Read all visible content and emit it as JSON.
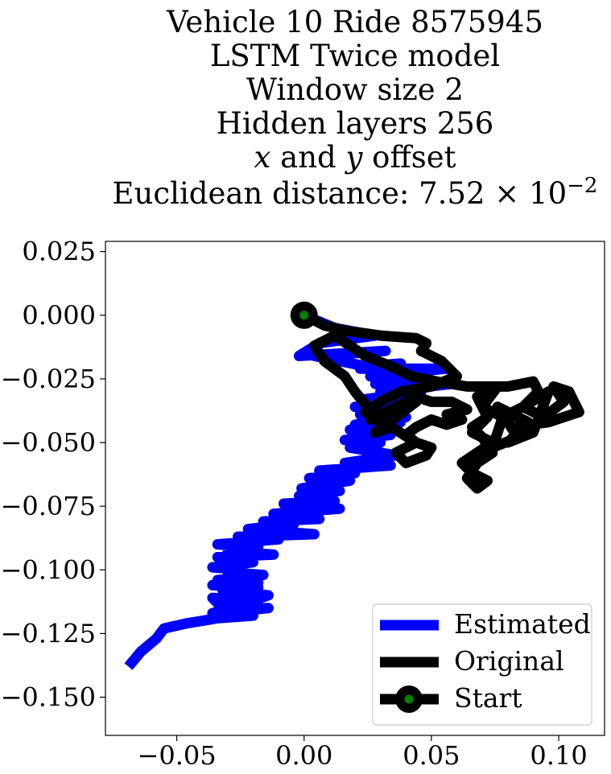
{
  "chart_data": {
    "type": "line",
    "title_lines": [
      "Vehicle 10 Ride 8575945",
      "LSTM Twice model",
      "Window size 2",
      "Hidden layers 256",
      "x and y offset",
      "Euclidean distance: 7.52 × 10⁻²"
    ],
    "title_math": {
      "x_var": "x",
      "and_text": " and ",
      "y_var": "y",
      "offset_text": " offset",
      "dist_prefix": "Euclidean distance: ",
      "dist_mantissa": "7.52",
      "dist_times": " × 10",
      "dist_exponent": "−2"
    },
    "xlabel": "",
    "ylabel": "",
    "xlim": [
      -0.078,
      0.118
    ],
    "ylim": [
      -0.165,
      0.029
    ],
    "xticks": [
      -0.05,
      0.0,
      0.05,
      0.1
    ],
    "xtick_labels": [
      "−0.05",
      "0.00",
      "0.05",
      "0.10"
    ],
    "yticks": [
      0.025,
      0.0,
      -0.025,
      -0.05,
      -0.075,
      -0.1,
      -0.125,
      -0.15
    ],
    "ytick_labels": [
      "0.025",
      "0.000",
      "−0.025",
      "−0.050",
      "−0.075",
      "−0.100",
      "−0.125",
      "−0.150"
    ],
    "grid": false,
    "legend_position": "bottom-right",
    "series": [
      {
        "name": "Estimated",
        "color": "#0000ff",
        "x": [
          0.0,
          0.012,
          0.028,
          0.006,
          -0.002,
          0.032,
          0.004,
          0.024,
          0.038,
          0.022,
          0.056,
          0.026,
          0.048,
          0.028,
          0.058,
          0.03,
          0.046,
          0.024,
          0.04,
          0.02,
          0.036,
          0.022,
          0.04,
          0.02,
          0.038,
          0.018,
          0.034,
          0.016,
          0.03,
          0.018,
          0.036,
          0.016,
          0.034,
          0.006,
          0.02,
          0.002,
          0.018,
          -0.001,
          0.014,
          -0.002,
          0.012,
          -0.008,
          0.014,
          -0.012,
          0.006,
          -0.016,
          -0.004,
          -0.022,
          0.004,
          -0.026,
          -0.01,
          -0.034,
          -0.018,
          -0.03,
          -0.012,
          -0.034,
          -0.02,
          -0.036,
          -0.024,
          -0.03,
          -0.016,
          -0.034,
          -0.018,
          -0.036,
          -0.018,
          -0.032,
          -0.014,
          -0.02,
          -0.036,
          -0.034,
          -0.018,
          -0.034,
          -0.014,
          -0.036,
          -0.02,
          -0.034,
          -0.04,
          -0.046,
          -0.055,
          -0.058,
          -0.064,
          -0.069
        ],
        "y": [
          0.0,
          -0.005,
          -0.008,
          -0.011,
          -0.016,
          -0.014,
          -0.016,
          -0.02,
          -0.019,
          -0.021,
          -0.021,
          -0.024,
          -0.023,
          -0.027,
          -0.027,
          -0.03,
          -0.03,
          -0.033,
          -0.035,
          -0.036,
          -0.037,
          -0.039,
          -0.04,
          -0.043,
          -0.042,
          -0.045,
          -0.047,
          -0.049,
          -0.05,
          -0.052,
          -0.055,
          -0.058,
          -0.059,
          -0.061,
          -0.062,
          -0.064,
          -0.065,
          -0.068,
          -0.069,
          -0.071,
          -0.073,
          -0.074,
          -0.076,
          -0.078,
          -0.08,
          -0.081,
          -0.082,
          -0.084,
          -0.086,
          -0.087,
          -0.088,
          -0.09,
          -0.091,
          -0.093,
          -0.094,
          -0.095,
          -0.097,
          -0.099,
          -0.1,
          -0.101,
          -0.102,
          -0.104,
          -0.105,
          -0.106,
          -0.107,
          -0.108,
          -0.11,
          -0.112,
          -0.111,
          -0.113,
          -0.114,
          -0.116,
          -0.115,
          -0.117,
          -0.118,
          -0.119,
          -0.12,
          -0.121,
          -0.123,
          -0.127,
          -0.132,
          -0.138
        ]
      },
      {
        "name": "Original",
        "color": "#000000",
        "x": [
          0.0,
          0.008,
          0.016,
          0.03,
          0.044,
          0.048,
          0.046,
          0.054,
          0.06,
          0.05,
          0.038,
          0.03,
          0.024,
          0.028,
          0.034,
          0.028,
          0.036,
          0.044,
          0.032,
          0.026,
          0.036,
          0.044,
          0.05,
          0.058,
          0.064,
          0.056,
          0.062,
          0.056,
          0.05,
          0.044,
          0.04,
          0.044,
          0.05,
          0.048,
          0.04,
          0.036,
          0.044,
          0.036,
          0.03,
          0.024,
          0.02,
          0.016,
          0.008,
          0.004,
          0.012,
          0.024,
          0.034,
          0.042,
          0.052,
          0.064,
          0.08,
          0.09,
          0.092,
          0.086,
          0.078,
          0.082,
          0.096,
          0.108,
          0.104,
          0.098,
          0.102,
          0.094,
          0.086,
          0.096,
          0.09,
          0.08,
          0.088,
          0.076,
          0.084,
          0.074,
          0.078,
          0.07,
          0.076,
          0.068,
          0.072,
          0.066,
          0.074,
          0.068,
          0.062,
          0.066,
          0.072,
          0.068,
          0.064,
          0.068,
          0.074,
          0.07,
          0.066,
          0.072
        ],
        "y": [
          0.0,
          -0.004,
          -0.006,
          -0.008,
          -0.009,
          -0.011,
          -0.014,
          -0.018,
          -0.024,
          -0.028,
          -0.03,
          -0.034,
          -0.038,
          -0.041,
          -0.044,
          -0.046,
          -0.04,
          -0.034,
          -0.038,
          -0.041,
          -0.036,
          -0.032,
          -0.034,
          -0.034,
          -0.037,
          -0.039,
          -0.041,
          -0.043,
          -0.041,
          -0.044,
          -0.047,
          -0.05,
          -0.052,
          -0.055,
          -0.058,
          -0.054,
          -0.05,
          -0.045,
          -0.04,
          -0.035,
          -0.03,
          -0.024,
          -0.018,
          -0.012,
          -0.008,
          -0.016,
          -0.02,
          -0.024,
          -0.026,
          -0.028,
          -0.028,
          -0.026,
          -0.03,
          -0.036,
          -0.04,
          -0.044,
          -0.042,
          -0.038,
          -0.03,
          -0.028,
          -0.034,
          -0.04,
          -0.036,
          -0.03,
          -0.046,
          -0.05,
          -0.042,
          -0.036,
          -0.048,
          -0.052,
          -0.04,
          -0.036,
          -0.028,
          -0.032,
          -0.04,
          -0.046,
          -0.05,
          -0.054,
          -0.058,
          -0.062,
          -0.065,
          -0.068,
          -0.064,
          -0.058,
          -0.054,
          -0.048,
          -0.044,
          -0.04
        ]
      }
    ],
    "start_point": {
      "name": "Start",
      "x": 0.0,
      "y": 0.0,
      "outer_color": "#000000",
      "inner_color": "#008000"
    }
  }
}
